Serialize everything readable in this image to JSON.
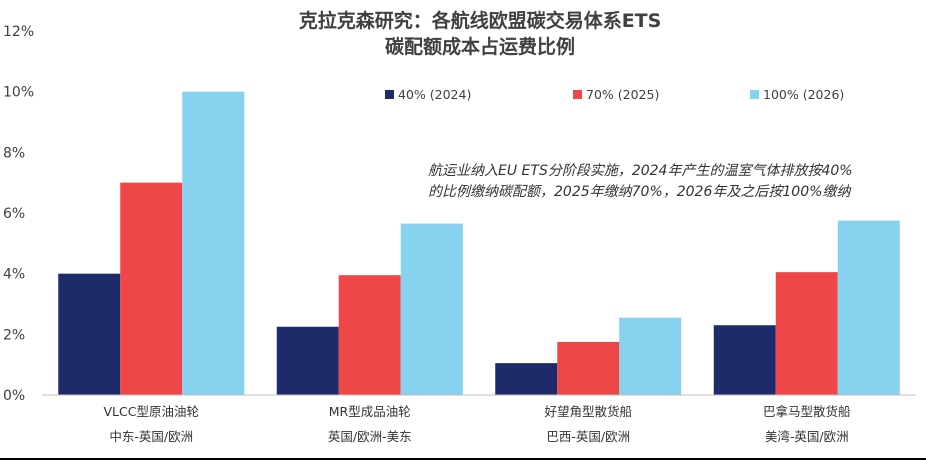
{
  "chart_data": {
    "type": "bar",
    "title": [
      "克拉克森研究：各航线欧盟碳交易体系ETS",
      "碳配额成本占运费比例"
    ],
    "categories": [
      [
        "VLCC型原油油轮",
        "中东-英国/欧洲"
      ],
      [
        "MR型成品油轮",
        "英国/欧洲-美东"
      ],
      [
        "好望角型散货船",
        "巴西-英国/欧洲"
      ],
      [
        "巴拿马型散货船",
        "美湾-英国/欧洲"
      ]
    ],
    "series": [
      {
        "name": "40% (2024)",
        "color": "#1f2a6b",
        "values": [
          4.0,
          2.25,
          1.05,
          2.3
        ]
      },
      {
        "name": "70% (2025)",
        "color": "#ef4747",
        "values": [
          7.0,
          3.95,
          1.75,
          4.05
        ]
      },
      {
        "name": "100% (2026)",
        "color": "#86d2ef",
        "values": [
          10.0,
          5.65,
          2.55,
          5.75
        ]
      }
    ],
    "yticks": [
      "0%",
      "2%",
      "4%",
      "6%",
      "8%",
      "10%",
      "12%"
    ],
    "ylim": [
      0,
      12
    ],
    "legend_position": "top",
    "annotation": [
      "航运业纳入EU ETS分阶段实施，2024年产生的温室气体排放按40%",
      "的比例缴纳碳配额，2025年缴纳70%，2026年及之后按100%缴纳"
    ]
  }
}
